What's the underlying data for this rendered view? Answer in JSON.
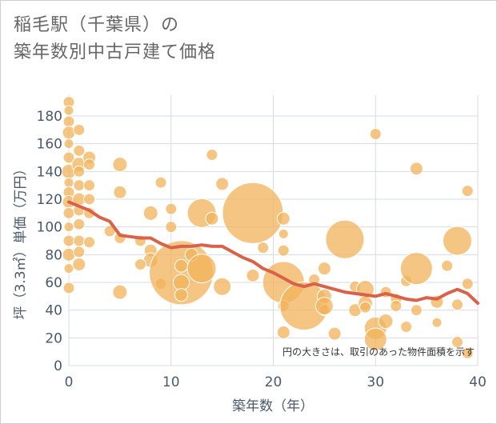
{
  "title_lines": [
    "稲毛駅（千葉県）の",
    "築年数別中古戸建て価格"
  ],
  "chart_data": {
    "type": "scatter",
    "title": "稲毛駅（千葉県）の築年数別中古戸建て価格",
    "xlabel": "築年数（年）",
    "ylabel": "坪（3.3㎡）単価（万円）",
    "xlim": [
      0,
      40
    ],
    "ylim": [
      0,
      195
    ],
    "xticks": [
      0,
      10,
      20,
      30,
      40
    ],
    "yticks": [
      0,
      20,
      40,
      60,
      80,
      100,
      120,
      140,
      160,
      180
    ],
    "grid": true,
    "annotation": "円の大きさは、取引のあった物件面積を示す",
    "colors": {
      "bubble": "#f2b35a",
      "trend": "#d9634a",
      "grid": "#d5dce6"
    },
    "bubbles": [
      {
        "x": 0,
        "y": 190,
        "s": 7
      },
      {
        "x": 0,
        "y": 184,
        "s": 6
      },
      {
        "x": 0,
        "y": 176,
        "s": 7
      },
      {
        "x": 0,
        "y": 168,
        "s": 8
      },
      {
        "x": 0,
        "y": 160,
        "s": 6
      },
      {
        "x": 0,
        "y": 150,
        "s": 7
      },
      {
        "x": 0,
        "y": 140,
        "s": 9
      },
      {
        "x": 0,
        "y": 132,
        "s": 6
      },
      {
        "x": 0,
        "y": 125,
        "s": 7
      },
      {
        "x": 0,
        "y": 118,
        "s": 8
      },
      {
        "x": 0,
        "y": 110,
        "s": 7
      },
      {
        "x": 0,
        "y": 100,
        "s": 6
      },
      {
        "x": 0,
        "y": 90,
        "s": 7
      },
      {
        "x": 0,
        "y": 80,
        "s": 8
      },
      {
        "x": 0,
        "y": 70,
        "s": 6
      },
      {
        "x": 0,
        "y": 56,
        "s": 7
      },
      {
        "x": 1,
        "y": 170,
        "s": 7
      },
      {
        "x": 1,
        "y": 155,
        "s": 7
      },
      {
        "x": 1,
        "y": 145,
        "s": 9
      },
      {
        "x": 1,
        "y": 140,
        "s": 7
      },
      {
        "x": 1,
        "y": 130,
        "s": 7
      },
      {
        "x": 1,
        "y": 120,
        "s": 8
      },
      {
        "x": 1,
        "y": 112,
        "s": 7
      },
      {
        "x": 1,
        "y": 102,
        "s": 7
      },
      {
        "x": 1,
        "y": 90,
        "s": 7
      },
      {
        "x": 1,
        "y": 82,
        "s": 7
      },
      {
        "x": 1,
        "y": 73,
        "s": 8
      },
      {
        "x": 2,
        "y": 150,
        "s": 8
      },
      {
        "x": 2,
        "y": 145,
        "s": 7
      },
      {
        "x": 2,
        "y": 130,
        "s": 7
      },
      {
        "x": 2,
        "y": 120,
        "s": 7
      },
      {
        "x": 2,
        "y": 110,
        "s": 7
      },
      {
        "x": 2,
        "y": 89,
        "s": 7
      },
      {
        "x": 5,
        "y": 145,
        "s": 9
      },
      {
        "x": 5,
        "y": 125,
        "s": 8
      },
      {
        "x": 5,
        "y": 92,
        "s": 7
      },
      {
        "x": 5,
        "y": 53,
        "s": 9
      },
      {
        "x": 4,
        "y": 97,
        "s": 7
      },
      {
        "x": 8,
        "y": 110,
        "s": 9
      },
      {
        "x": 8,
        "y": 83,
        "s": 8
      },
      {
        "x": 8,
        "y": 76,
        "s": 9
      },
      {
        "x": 9,
        "y": 132,
        "s": 7
      },
      {
        "x": 9,
        "y": 59,
        "s": 7
      },
      {
        "x": 7,
        "y": 90,
        "s": 7
      },
      {
        "x": 7,
        "y": 73,
        "s": 7
      },
      {
        "x": 10,
        "y": 113,
        "s": 7
      },
      {
        "x": 10,
        "y": 100,
        "s": 7
      },
      {
        "x": 11,
        "y": 67,
        "s": 40
      },
      {
        "x": 11,
        "y": 72,
        "s": 8
      },
      {
        "x": 11,
        "y": 60,
        "s": 10
      },
      {
        "x": 11,
        "y": 51,
        "s": 8
      },
      {
        "x": 12,
        "y": 80,
        "s": 8
      },
      {
        "x": 13,
        "y": 70,
        "s": 18
      },
      {
        "x": 13,
        "y": 110,
        "s": 18
      },
      {
        "x": 14,
        "y": 106,
        "s": 8
      },
      {
        "x": 14,
        "y": 152,
        "s": 7
      },
      {
        "x": 15,
        "y": 131,
        "s": 8
      },
      {
        "x": 15,
        "y": 57,
        "s": 11
      },
      {
        "x": 18,
        "y": 110,
        "s": 38
      },
      {
        "x": 18,
        "y": 65,
        "s": 8
      },
      {
        "x": 19,
        "y": 85,
        "s": 7
      },
      {
        "x": 21,
        "y": 60,
        "s": 26
      },
      {
        "x": 21,
        "y": 106,
        "s": 8
      },
      {
        "x": 21,
        "y": 95,
        "s": 6
      },
      {
        "x": 21,
        "y": 83,
        "s": 7
      },
      {
        "x": 21,
        "y": 43,
        "s": 7
      },
      {
        "x": 21,
        "y": 24,
        "s": 8
      },
      {
        "x": 23,
        "y": 43,
        "s": 30
      },
      {
        "x": 24,
        "y": 62,
        "s": 7
      },
      {
        "x": 25,
        "y": 70,
        "s": 8
      },
      {
        "x": 25,
        "y": 50,
        "s": 9
      },
      {
        "x": 25,
        "y": 40,
        "s": 7
      },
      {
        "x": 25,
        "y": 43,
        "s": 11
      },
      {
        "x": 26,
        "y": 23,
        "s": 8
      },
      {
        "x": 27,
        "y": 91,
        "s": 24
      },
      {
        "x": 28,
        "y": 57,
        "s": 7
      },
      {
        "x": 28,
        "y": 40,
        "s": 8
      },
      {
        "x": 29,
        "y": 55,
        "s": 11
      },
      {
        "x": 29,
        "y": 45,
        "s": 9
      },
      {
        "x": 29,
        "y": 42,
        "s": 7
      },
      {
        "x": 30,
        "y": 167,
        "s": 7
      },
      {
        "x": 30,
        "y": 27,
        "s": 14
      },
      {
        "x": 30,
        "y": 19,
        "s": 14
      },
      {
        "x": 31,
        "y": 32,
        "s": 9
      },
      {
        "x": 31,
        "y": 53,
        "s": 7
      },
      {
        "x": 32,
        "y": 48,
        "s": 7
      },
      {
        "x": 32,
        "y": 43,
        "s": 7
      },
      {
        "x": 33,
        "y": 61,
        "s": 7
      },
      {
        "x": 33,
        "y": 28,
        "s": 7
      },
      {
        "x": 34,
        "y": 142,
        "s": 8
      },
      {
        "x": 34,
        "y": 70,
        "s": 20
      },
      {
        "x": 34,
        "y": 40,
        "s": 7
      },
      {
        "x": 36,
        "y": 46,
        "s": 8
      },
      {
        "x": 36,
        "y": 31,
        "s": 6
      },
      {
        "x": 37,
        "y": 72,
        "s": 7
      },
      {
        "x": 38,
        "y": 90,
        "s": 18
      },
      {
        "x": 38,
        "y": 44,
        "s": 7
      },
      {
        "x": 38,
        "y": 17,
        "s": 7
      },
      {
        "x": 39,
        "y": 126,
        "s": 7
      },
      {
        "x": 39,
        "y": 59,
        "s": 7
      },
      {
        "x": 39,
        "y": 9,
        "s": 7
      }
    ],
    "trend": {
      "name": "",
      "x": [
        0,
        1,
        2,
        3,
        4,
        5,
        6,
        7,
        8,
        9,
        10,
        11,
        12,
        13,
        14,
        15,
        16,
        17,
        18,
        19,
        20,
        21,
        22,
        23,
        24,
        25,
        26,
        27,
        28,
        29,
        30,
        31,
        32,
        33,
        34,
        35,
        36,
        37,
        38,
        39,
        40
      ],
      "y": [
        118,
        115,
        112,
        107,
        104,
        94,
        93,
        92,
        92,
        88,
        85,
        86,
        86,
        87,
        86,
        86,
        82,
        78,
        75,
        70,
        67,
        63,
        59,
        57,
        59,
        57,
        55,
        53,
        52,
        51,
        50,
        52,
        50,
        48,
        47,
        49,
        48,
        52,
        55,
        52,
        45
      ]
    }
  }
}
